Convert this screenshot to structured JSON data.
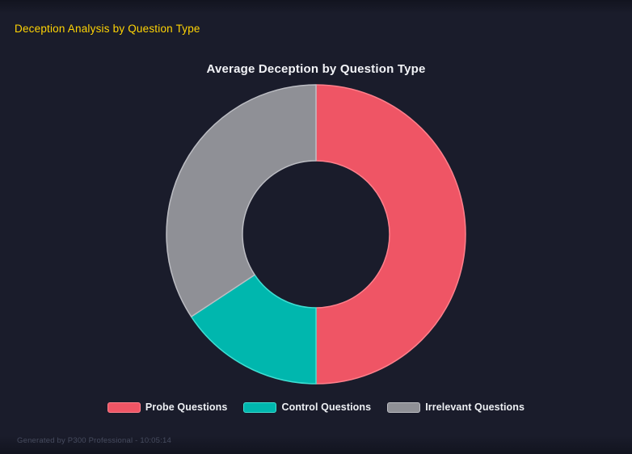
{
  "page": {
    "title": "Deception Analysis by Question Type",
    "footer": "Generated by P300 Professional - 10:05:14"
  },
  "chart_data": {
    "type": "pie",
    "subtype": "donut",
    "title": "Average Deception by Question Type",
    "categories": [
      "Probe Questions",
      "Control Questions",
      "Irrelevant Questions"
    ],
    "values_percent": [
      50.0,
      15.7,
      34.3
    ],
    "colors": [
      "#ef5565",
      "#00b7ae",
      "#8f9096"
    ],
    "border_colors": [
      "#ff808c",
      "#3fded2",
      "#bcbdc3"
    ],
    "legend_position": "bottom",
    "start_angle_deg": 0,
    "direction": "clockwise",
    "cutout_ratio": 0.49
  },
  "theme": {
    "background": "#1a1c2b",
    "background_edge": "#12141f",
    "accent_yellow": "#ffd404",
    "title_color": "#f2f3f7",
    "legend_text": "#eef0f4",
    "footer_color": "#474c5f"
  }
}
